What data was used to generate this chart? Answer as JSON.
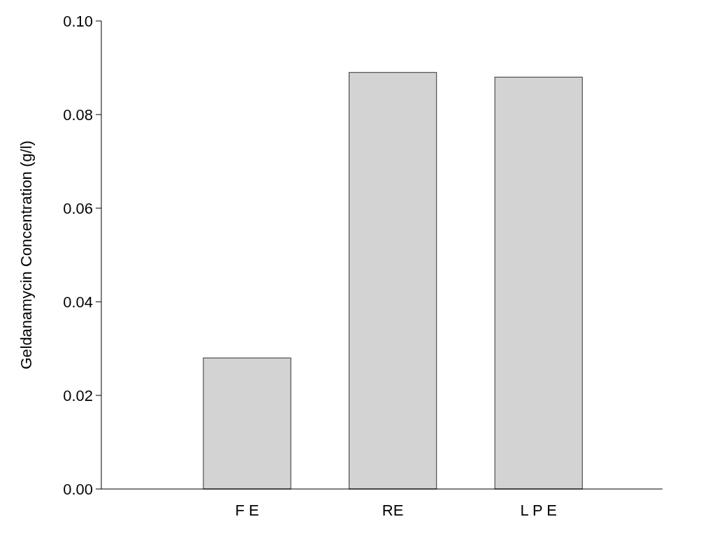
{
  "chart_data": {
    "type": "bar",
    "ylabel": "Geldanamycin Concentration (g/l)",
    "categories": [
      "F E",
      "RE",
      "L P E"
    ],
    "series": [
      {
        "color": "#d3d3d3",
        "values": [
          0.028,
          0.089,
          0.088
        ]
      }
    ],
    "ylim": [
      0,
      0.1
    ],
    "yticks": [
      {
        "value": 0,
        "label": "0.00"
      },
      {
        "value": 0.02,
        "label": "0.02"
      },
      {
        "value": 0.04,
        "label": "0.04"
      },
      {
        "value": 0.06,
        "label": "0.06"
      },
      {
        "value": 0.08,
        "label": "0.08"
      },
      {
        "value": 0.1,
        "label": "0.10"
      }
    ]
  }
}
